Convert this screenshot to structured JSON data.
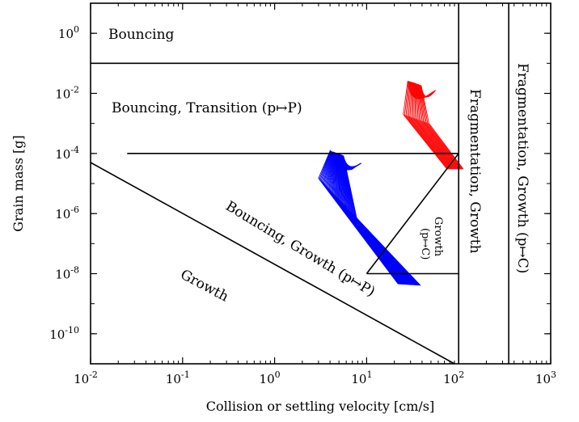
{
  "chart_data": {
    "type": "line",
    "xlabel": "Collision or settling velocity [cm/s]",
    "ylabel": "Grain mass [g]",
    "xscale": "log",
    "yscale": "log",
    "xlim": [
      0.01,
      1000
    ],
    "ylim": [
      1e-11,
      10
    ],
    "x_ticks": [
      {
        "base": "10",
        "exp": "-2",
        "value": 0.01
      },
      {
        "base": "10",
        "exp": "-1",
        "value": 0.1
      },
      {
        "base": "10",
        "exp": "0",
        "value": 1
      },
      {
        "base": "10",
        "exp": "1",
        "value": 10
      },
      {
        "base": "10",
        "exp": "2",
        "value": 100
      },
      {
        "base": "10",
        "exp": "3",
        "value": 1000
      }
    ],
    "y_ticks": [
      {
        "base": "10",
        "exp": "0",
        "value": 1
      },
      {
        "base": "10",
        "exp": "-2",
        "value": 0.01
      },
      {
        "base": "10",
        "exp": "-4",
        "value": 0.0001
      },
      {
        "base": "10",
        "exp": "-6",
        "value": 1e-06
      },
      {
        "base": "10",
        "exp": "-8",
        "value": 1e-08
      },
      {
        "base": "10",
        "exp": "-10",
        "value": 1e-10
      }
    ],
    "regions": {
      "bouncing": "Bouncing",
      "bouncing_transition": "Bouncing, Transition (p↦P)",
      "growth": "Growth",
      "bouncing_growth": "Bouncing, Growth (p↦P)",
      "growth_pc_line1": "Growth",
      "growth_pc_line2": "(p↦C)",
      "fragmentation_growth": "Fragmentation, Growth",
      "fragmentation_growth_pc": "Fragmentation, Growth (p↦C)"
    },
    "boundaries": [
      {
        "points": [
          [
            0.01,
            0.1
          ],
          [
            100,
            0.1
          ]
        ]
      },
      {
        "points": [
          [
            100,
            10
          ],
          [
            100,
            1e-11
          ]
        ]
      },
      {
        "points": [
          [
            350,
            10
          ],
          [
            350,
            1e-11
          ]
        ]
      },
      {
        "points": [
          [
            0.025,
            0.0001
          ],
          [
            100,
            0.0001
          ]
        ]
      },
      {
        "points": [
          [
            0.01,
            5e-05
          ],
          [
            90,
            1e-11
          ]
        ]
      },
      {
        "points": [
          [
            10,
            1e-08
          ],
          [
            100,
            0.0001
          ]
        ]
      },
      {
        "points": [
          [
            10,
            1e-08
          ],
          [
            100,
            1e-08
          ]
        ]
      }
    ],
    "series": [
      {
        "color": "#0000ff",
        "count": 45,
        "vertex": [
          3.0,
          1.5e-05
        ],
        "vertex_shift": [
          2.6,
          0.047
        ],
        "hook_start": [
          4.0,
          0.00012
        ],
        "hook_dip": [
          4.4,
          2.2e-05
        ],
        "hook_end": [
          7.0,
          3e-05
        ],
        "tail_end": [
          22.0,
          4.5e-09
        ],
        "tail_shift": [
          1.75,
          0.9
        ]
      },
      {
        "color": "#ff0000",
        "count": 20,
        "vertex": [
          25.0,
          0.002
        ],
        "vertex_shift": [
          1.9,
          0.5
        ],
        "hook_start": [
          28.0,
          0.026
        ],
        "hook_dip": [
          30.0,
          0.004
        ],
        "hook_end": [
          45.0,
          0.008
        ],
        "tail_end": [
          75.0,
          3e-05
        ],
        "tail_shift": [
          1.5,
          1.0
        ]
      }
    ]
  }
}
